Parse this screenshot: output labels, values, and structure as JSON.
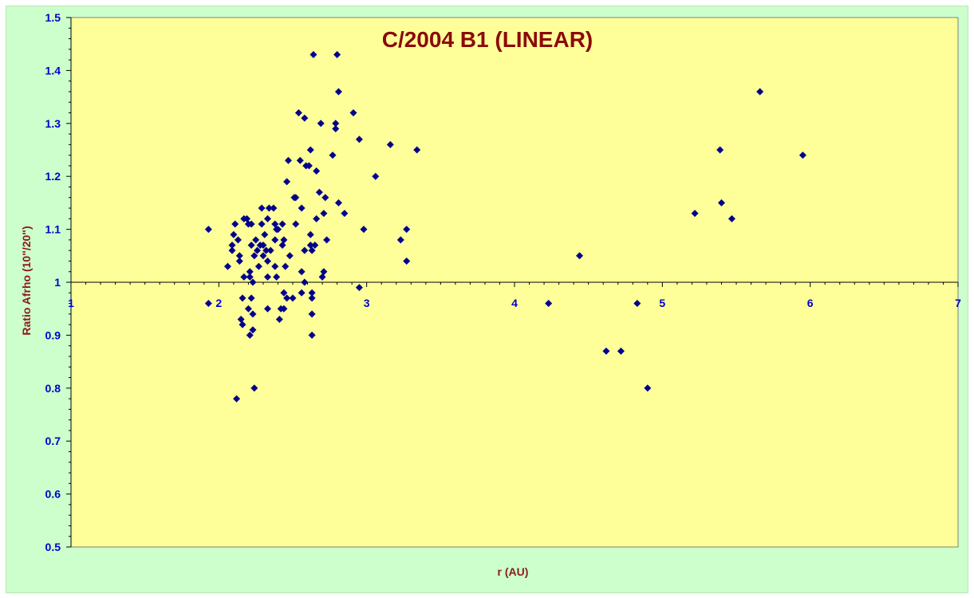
{
  "chart_data": {
    "type": "scatter",
    "title": "C/2004 B1 (LINEAR)",
    "xlabel": "r (AU)",
    "ylabel": "Ratio Afrho (10\"/20\")",
    "xlim": [
      1,
      7
    ],
    "ylim": [
      0.5,
      1.5
    ],
    "x_ticks": [
      "1",
      "2",
      "3",
      "4",
      "5",
      "6",
      "7"
    ],
    "y_ticks": [
      "0.5",
      "0.6",
      "0.7",
      "0.8",
      "0.9",
      "1",
      "1.1",
      "1.2",
      "1.3",
      "1.4",
      "1.5"
    ],
    "x_axis_crosses_y": 1.0,
    "grid": false,
    "legend": "none",
    "colors": {
      "plot_bg": "#ffff99",
      "frame_bg": "#ccffcc",
      "marker": "#00008b",
      "title": "#8b0a0a",
      "axis_title": "#8b1a1a",
      "tick_label": "#0000cc"
    },
    "points": [
      [
        1.93,
        1.1
      ],
      [
        1.93,
        0.96
      ],
      [
        2.06,
        1.03
      ],
      [
        2.09,
        1.07
      ],
      [
        2.09,
        1.06
      ],
      [
        2.1,
        1.09
      ],
      [
        2.11,
        1.11
      ],
      [
        2.13,
        1.08
      ],
      [
        2.14,
        1.05
      ],
      [
        2.14,
        1.04
      ],
      [
        2.15,
        0.93
      ],
      [
        2.16,
        0.92
      ],
      [
        2.16,
        0.97
      ],
      [
        2.17,
        1.12
      ],
      [
        2.17,
        1.01
      ],
      [
        2.19,
        1.12
      ],
      [
        2.2,
        0.95
      ],
      [
        2.2,
        1.11
      ],
      [
        2.21,
        1.02
      ],
      [
        2.21,
        1.01
      ],
      [
        2.21,
        0.9
      ],
      [
        2.22,
        1.11
      ],
      [
        2.22,
        1.07
      ],
      [
        2.22,
        0.97
      ],
      [
        2.23,
        1.0
      ],
      [
        2.23,
        0.91
      ],
      [
        2.23,
        0.94
      ],
      [
        2.24,
        1.05
      ],
      [
        2.24,
        0.8
      ],
      [
        2.12,
        0.78
      ],
      [
        2.25,
        1.08
      ],
      [
        2.26,
        1.06
      ],
      [
        2.27,
        1.03
      ],
      [
        2.28,
        1.07
      ],
      [
        2.29,
        1.11
      ],
      [
        2.29,
        1.14
      ],
      [
        2.3,
        1.05
      ],
      [
        2.3,
        1.07
      ],
      [
        2.31,
        1.09
      ],
      [
        2.32,
        1.06
      ],
      [
        2.33,
        1.12
      ],
      [
        2.33,
        1.04
      ],
      [
        2.33,
        0.95
      ],
      [
        2.33,
        1.01
      ],
      [
        2.34,
        1.14
      ],
      [
        2.35,
        1.06
      ],
      [
        2.37,
        1.14
      ],
      [
        2.38,
        1.11
      ],
      [
        2.38,
        1.08
      ],
      [
        2.38,
        1.03
      ],
      [
        2.39,
        1.01
      ],
      [
        2.39,
        1.1
      ],
      [
        2.4,
        1.1
      ],
      [
        2.41,
        0.93
      ],
      [
        2.42,
        0.95
      ],
      [
        2.43,
        1.11
      ],
      [
        2.43,
        1.07
      ],
      [
        2.44,
        1.08
      ],
      [
        2.44,
        0.98
      ],
      [
        2.44,
        0.95
      ],
      [
        2.45,
        1.03
      ],
      [
        2.46,
        0.97
      ],
      [
        2.46,
        1.19
      ],
      [
        2.47,
        1.23
      ],
      [
        2.48,
        1.05
      ],
      [
        2.5,
        0.97
      ],
      [
        2.51,
        1.16
      ],
      [
        2.52,
        1.11
      ],
      [
        2.52,
        1.16
      ],
      [
        2.54,
        1.32
      ],
      [
        2.55,
        1.23
      ],
      [
        2.56,
        1.14
      ],
      [
        2.56,
        1.02
      ],
      [
        2.56,
        0.98
      ],
      [
        2.58,
        1.31
      ],
      [
        2.58,
        1.06
      ],
      [
        2.58,
        1.0
      ],
      [
        2.59,
        1.22
      ],
      [
        2.61,
        1.22
      ],
      [
        2.62,
        1.25
      ],
      [
        2.62,
        1.09
      ],
      [
        2.62,
        1.07
      ],
      [
        2.63,
        1.06
      ],
      [
        2.63,
        0.98
      ],
      [
        2.63,
        0.97
      ],
      [
        2.63,
        0.94
      ],
      [
        2.63,
        0.9
      ],
      [
        2.64,
        1.43
      ],
      [
        2.65,
        1.07
      ],
      [
        2.66,
        1.21
      ],
      [
        2.66,
        1.12
      ],
      [
        2.68,
        1.17
      ],
      [
        2.69,
        1.3
      ],
      [
        2.7,
        1.01
      ],
      [
        2.71,
        1.13
      ],
      [
        2.71,
        1.02
      ],
      [
        2.72,
        1.16
      ],
      [
        2.73,
        1.08
      ],
      [
        2.77,
        1.24
      ],
      [
        2.79,
        1.3
      ],
      [
        2.79,
        1.29
      ],
      [
        2.8,
        1.43
      ],
      [
        2.81,
        1.36
      ],
      [
        2.81,
        1.15
      ],
      [
        2.85,
        1.13
      ],
      [
        2.91,
        1.32
      ],
      [
        2.95,
        1.27
      ],
      [
        2.95,
        0.99
      ],
      [
        2.98,
        1.1
      ],
      [
        3.06,
        1.2
      ],
      [
        3.16,
        1.26
      ],
      [
        3.23,
        1.08
      ],
      [
        3.27,
        1.1
      ],
      [
        3.27,
        1.04
      ],
      [
        3.34,
        1.25
      ],
      [
        4.23,
        0.96
      ],
      [
        4.44,
        1.05
      ],
      [
        4.62,
        0.87
      ],
      [
        4.72,
        0.87
      ],
      [
        4.83,
        0.96
      ],
      [
        4.9,
        0.8
      ],
      [
        5.22,
        1.13
      ],
      [
        5.39,
        1.25
      ],
      [
        5.4,
        1.15
      ],
      [
        5.47,
        1.12
      ],
      [
        5.66,
        1.36
      ],
      [
        5.95,
        1.24
      ]
    ]
  }
}
